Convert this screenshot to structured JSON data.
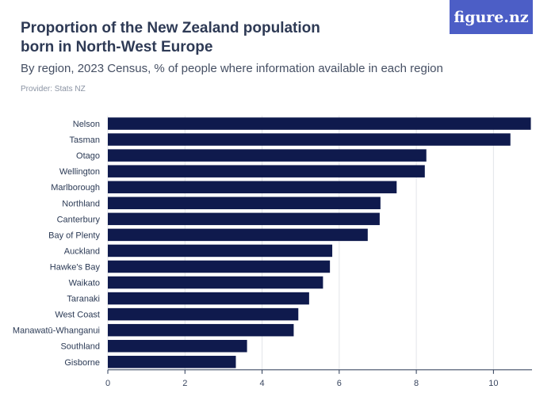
{
  "logo": {
    "text": "figure.nz"
  },
  "chart_data": {
    "type": "bar",
    "orientation": "horizontal",
    "title": "Proportion of the New Zealand population born in North-West Europe",
    "subtitle": "By region, 2023 Census, % of people where information available in each region",
    "provider": "Provider: Stats NZ",
    "categories": [
      "Nelson",
      "Tasman",
      "Otago",
      "Wellington",
      "Marlborough",
      "Northland",
      "Canterbury",
      "Bay of Plenty",
      "Auckland",
      "Hawke's Bay",
      "Waikato",
      "Taranaki",
      "West Coast",
      "Manawatū-Whanganui",
      "Southland",
      "Gisborne"
    ],
    "values": [
      10.97,
      10.44,
      8.26,
      8.22,
      7.49,
      7.07,
      7.05,
      6.74,
      5.82,
      5.76,
      5.58,
      5.22,
      4.94,
      4.82,
      3.61,
      3.32
    ],
    "xlim": [
      0,
      11
    ],
    "xticks": [
      0,
      2,
      4,
      6,
      8,
      10
    ],
    "grid": true,
    "colors": {
      "bar": "#0f1a4d",
      "grid": "#e3e5e9",
      "axis": "#2b3a55"
    }
  }
}
